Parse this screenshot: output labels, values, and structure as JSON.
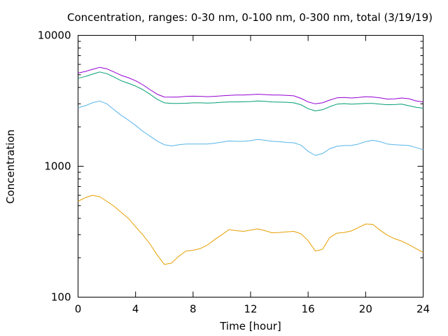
{
  "chart_data": {
    "type": "line",
    "title": "Concentration, ranges: 0-30 nm, 0-100 nm, 0-300 nm, total (3/19/19)",
    "xlabel": "Time [hour]",
    "ylabel": "Concentration",
    "xlim": [
      0,
      24
    ],
    "ylim": [
      100,
      10000
    ],
    "yscale": "log",
    "grid": false,
    "legend": "none",
    "x_ticks": [
      0,
      4,
      8,
      12,
      16,
      20,
      24
    ],
    "x_tick_labels": [
      "0",
      "4",
      "8",
      "12",
      "16",
      "20",
      "24"
    ],
    "y_ticks": [
      100,
      1000,
      10000
    ],
    "y_tick_labels": [
      "100",
      "1000",
      "10000"
    ],
    "series": [
      {
        "color": "#e69f00",
        "points": [
          [
            0,
            540
          ],
          [
            0.5,
            575
          ],
          [
            1,
            600
          ],
          [
            1.5,
            585
          ],
          [
            2,
            540
          ],
          [
            2.5,
            495
          ],
          [
            3,
            445
          ],
          [
            3.5,
            400
          ],
          [
            4,
            345
          ],
          [
            4.5,
            300
          ],
          [
            5,
            255
          ],
          [
            5.5,
            210
          ],
          [
            6,
            178
          ],
          [
            6.5,
            182
          ],
          [
            7,
            205
          ],
          [
            7.5,
            225
          ],
          [
            8,
            228
          ],
          [
            8.5,
            235
          ],
          [
            9,
            250
          ],
          [
            9.5,
            275
          ],
          [
            10,
            300
          ],
          [
            10.5,
            328
          ],
          [
            11,
            322
          ],
          [
            11.5,
            318
          ],
          [
            12,
            325
          ],
          [
            12.5,
            332
          ],
          [
            13,
            322
          ],
          [
            13.5,
            310
          ],
          [
            14,
            312
          ],
          [
            14.5,
            315
          ],
          [
            15,
            318
          ],
          [
            15.5,
            305
          ],
          [
            16,
            270
          ],
          [
            16.5,
            225
          ],
          [
            17,
            232
          ],
          [
            17.5,
            285
          ],
          [
            18,
            308
          ],
          [
            18.5,
            312
          ],
          [
            19,
            320
          ],
          [
            19.5,
            340
          ],
          [
            20,
            362
          ],
          [
            20.5,
            360
          ],
          [
            21,
            325
          ],
          [
            21.5,
            298
          ],
          [
            22,
            280
          ],
          [
            22.5,
            268
          ],
          [
            23,
            252
          ],
          [
            23.5,
            235
          ],
          [
            24,
            220
          ]
        ]
      },
      {
        "color": "#56b4e9",
        "points": [
          [
            0,
            2800
          ],
          [
            0.5,
            2900
          ],
          [
            1,
            3050
          ],
          [
            1.5,
            3150
          ],
          [
            2,
            3000
          ],
          [
            2.5,
            2700
          ],
          [
            3,
            2450
          ],
          [
            3.5,
            2250
          ],
          [
            4,
            2050
          ],
          [
            4.5,
            1850
          ],
          [
            5,
            1700
          ],
          [
            5.5,
            1560
          ],
          [
            6,
            1460
          ],
          [
            6.5,
            1430
          ],
          [
            7,
            1460
          ],
          [
            7.5,
            1480
          ],
          [
            8,
            1480
          ],
          [
            8.5,
            1480
          ],
          [
            9,
            1480
          ],
          [
            9.5,
            1500
          ],
          [
            10,
            1530
          ],
          [
            10.5,
            1560
          ],
          [
            11,
            1550
          ],
          [
            11.5,
            1550
          ],
          [
            12,
            1570
          ],
          [
            12.5,
            1600
          ],
          [
            13,
            1580
          ],
          [
            13.5,
            1550
          ],
          [
            14,
            1540
          ],
          [
            14.5,
            1520
          ],
          [
            15,
            1510
          ],
          [
            15.5,
            1450
          ],
          [
            16,
            1300
          ],
          [
            16.5,
            1210
          ],
          [
            17,
            1250
          ],
          [
            17.5,
            1360
          ],
          [
            18,
            1420
          ],
          [
            18.5,
            1440
          ],
          [
            19,
            1440
          ],
          [
            19.5,
            1480
          ],
          [
            20,
            1540
          ],
          [
            20.5,
            1580
          ],
          [
            21,
            1540
          ],
          [
            21.5,
            1480
          ],
          [
            22,
            1460
          ],
          [
            22.5,
            1450
          ],
          [
            23,
            1440
          ],
          [
            23.5,
            1390
          ],
          [
            24,
            1340
          ]
        ]
      },
      {
        "color": "#009e73",
        "points": [
          [
            0,
            4700
          ],
          [
            0.5,
            4850
          ],
          [
            1,
            5050
          ],
          [
            1.5,
            5250
          ],
          [
            2,
            5100
          ],
          [
            2.5,
            4800
          ],
          [
            3,
            4500
          ],
          [
            3.5,
            4300
          ],
          [
            4,
            4100
          ],
          [
            4.5,
            3850
          ],
          [
            5,
            3550
          ],
          [
            5.5,
            3250
          ],
          [
            6,
            3050
          ],
          [
            6.5,
            3020
          ],
          [
            7,
            3020
          ],
          [
            7.5,
            3030
          ],
          [
            8,
            3050
          ],
          [
            8.5,
            3050
          ],
          [
            9,
            3040
          ],
          [
            9.5,
            3050
          ],
          [
            10,
            3080
          ],
          [
            10.5,
            3100
          ],
          [
            11,
            3100
          ],
          [
            11.5,
            3110
          ],
          [
            12,
            3120
          ],
          [
            12.5,
            3150
          ],
          [
            13,
            3130
          ],
          [
            13.5,
            3100
          ],
          [
            14,
            3090
          ],
          [
            14.5,
            3080
          ],
          [
            15,
            3050
          ],
          [
            15.5,
            2950
          ],
          [
            16,
            2750
          ],
          [
            16.5,
            2650
          ],
          [
            17,
            2700
          ],
          [
            17.5,
            2850
          ],
          [
            18,
            2980
          ],
          [
            18.5,
            3010
          ],
          [
            19,
            2980
          ],
          [
            19.5,
            3000
          ],
          [
            20,
            3020
          ],
          [
            20.5,
            3020
          ],
          [
            21,
            2980
          ],
          [
            21.5,
            2950
          ],
          [
            22,
            2960
          ],
          [
            22.5,
            2980
          ],
          [
            23,
            2900
          ],
          [
            23.5,
            2820
          ],
          [
            24,
            2780
          ]
        ]
      },
      {
        "color": "#9400d3",
        "points": [
          [
            0,
            5150
          ],
          [
            0.5,
            5300
          ],
          [
            1,
            5500
          ],
          [
            1.5,
            5700
          ],
          [
            2,
            5550
          ],
          [
            2.5,
            5250
          ],
          [
            3,
            4950
          ],
          [
            3.5,
            4750
          ],
          [
            4,
            4500
          ],
          [
            4.5,
            4200
          ],
          [
            5,
            3850
          ],
          [
            5.5,
            3550
          ],
          [
            6,
            3380
          ],
          [
            6.5,
            3370
          ],
          [
            7,
            3380
          ],
          [
            7.5,
            3420
          ],
          [
            8,
            3430
          ],
          [
            8.5,
            3420
          ],
          [
            9,
            3400
          ],
          [
            9.5,
            3420
          ],
          [
            10,
            3450
          ],
          [
            10.5,
            3480
          ],
          [
            11,
            3500
          ],
          [
            11.5,
            3500
          ],
          [
            12,
            3520
          ],
          [
            12.5,
            3550
          ],
          [
            13,
            3530
          ],
          [
            13.5,
            3500
          ],
          [
            14,
            3500
          ],
          [
            14.5,
            3480
          ],
          [
            15,
            3450
          ],
          [
            15.5,
            3300
          ],
          [
            16,
            3100
          ],
          [
            16.5,
            3000
          ],
          [
            17,
            3050
          ],
          [
            17.5,
            3200
          ],
          [
            18,
            3330
          ],
          [
            18.5,
            3350
          ],
          [
            19,
            3320
          ],
          [
            19.5,
            3350
          ],
          [
            20,
            3400
          ],
          [
            20.5,
            3380
          ],
          [
            21,
            3330
          ],
          [
            21.5,
            3260
          ],
          [
            22,
            3270
          ],
          [
            22.5,
            3320
          ],
          [
            23,
            3280
          ],
          [
            23.5,
            3160
          ],
          [
            24,
            3100
          ]
        ]
      }
    ]
  }
}
